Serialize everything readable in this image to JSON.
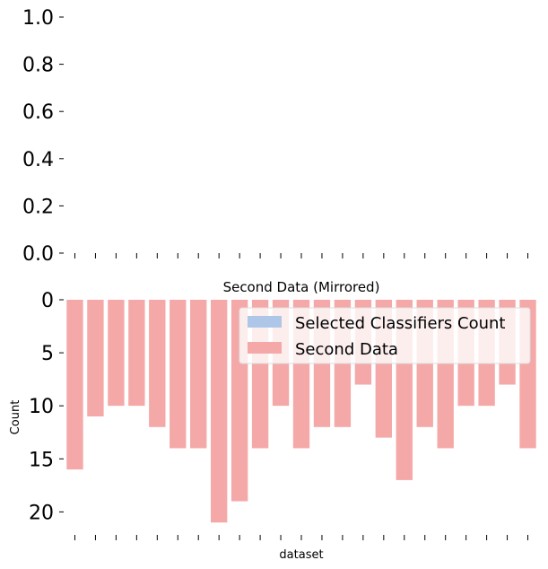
{
  "chart_data": [
    {
      "type": "bar",
      "title": "",
      "ylim": [
        0.0,
        1.0
      ],
      "y_ticks": [
        "0.0",
        "0.2",
        "0.4",
        "0.6",
        "0.8",
        "1.0"
      ],
      "series": [],
      "grid": false
    },
    {
      "type": "bar",
      "title": "Second Data (Mirrored)",
      "xlabel": "dataset",
      "ylabel": "Count",
      "y_inverted": true,
      "ylim": [
        0,
        22
      ],
      "y_ticks": [
        "0",
        "5",
        "10",
        "15",
        "20"
      ],
      "grid": false,
      "legend_position": "upper-right",
      "legend": [
        {
          "name": "Selected Classifiers Count",
          "color": "#aec7e8"
        },
        {
          "name": "Second Data",
          "color": "#f4a9a8"
        }
      ],
      "series": [
        {
          "name": "Second Data",
          "color": "#f4a9a8",
          "values": [
            16,
            11,
            10,
            10,
            12,
            14,
            14,
            21,
            19,
            14,
            10,
            14,
            12,
            12,
            8,
            13,
            17,
            12,
            14,
            10,
            10,
            8,
            14
          ]
        }
      ]
    }
  ]
}
